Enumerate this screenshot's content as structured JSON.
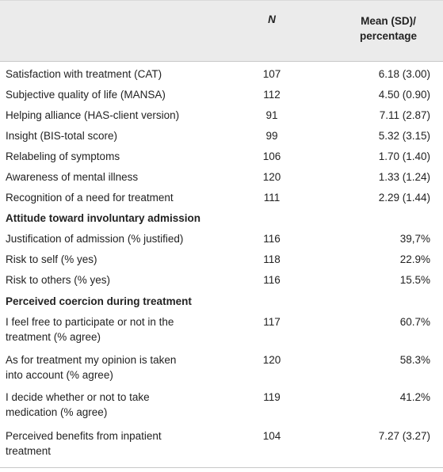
{
  "header": {
    "n": "N",
    "mean_line1": "Mean (SD)/",
    "mean_line2": "percentage"
  },
  "rows": [
    {
      "label": "Satisfaction with treatment (CAT)",
      "n": "107",
      "value": "6.18 (3.00)"
    },
    {
      "label": "Subjective quality of life (MANSA)",
      "n": "112",
      "value": "4.50 (0.90)"
    },
    {
      "label": "Helping alliance (HAS-client version)",
      "n": "91",
      "value": "7.11 (2.87)"
    },
    {
      "label": "Insight (BIS-total score)",
      "n": "99",
      "value": "5.32 (3.15)"
    },
    {
      "label": "Relabeling of symptoms",
      "n": "106",
      "value": "1.70 (1.40)"
    },
    {
      "label": "Awareness of mental illness",
      "n": "120",
      "value": "1.33 (1.24)"
    },
    {
      "label": "Recognition of a need for treatment",
      "n": "111",
      "value": "2.29 (1.44)"
    }
  ],
  "section1": {
    "title": "Attitude toward involuntary admission",
    "rows": [
      {
        "label": "Justification of admission (% justified)",
        "n": "116",
        "value": "39,7%"
      },
      {
        "label": "Risk to self (% yes)",
        "n": "118",
        "value": "22.9%"
      },
      {
        "label": "Risk to others (% yes)",
        "n": "116",
        "value": "15.5%"
      }
    ]
  },
  "section2": {
    "title": "Perceived coercion during treatment",
    "rows": [
      {
        "label1": "I feel free to participate or not in the",
        "label2": "treatment (% agree)",
        "n": "117",
        "value": "60.7%"
      },
      {
        "label1": "As for treatment my opinion is taken",
        "label2": "into account (% agree)",
        "n": "120",
        "value": "58.3%"
      },
      {
        "label1": "I decide whether or not to take",
        "label2": "medication (% agree)",
        "n": "119",
        "value": "41.2%"
      },
      {
        "label1": "Perceived benefits from inpatient",
        "label2": "treatment",
        "n": "104",
        "value": "7.27 (3.27)"
      }
    ]
  }
}
